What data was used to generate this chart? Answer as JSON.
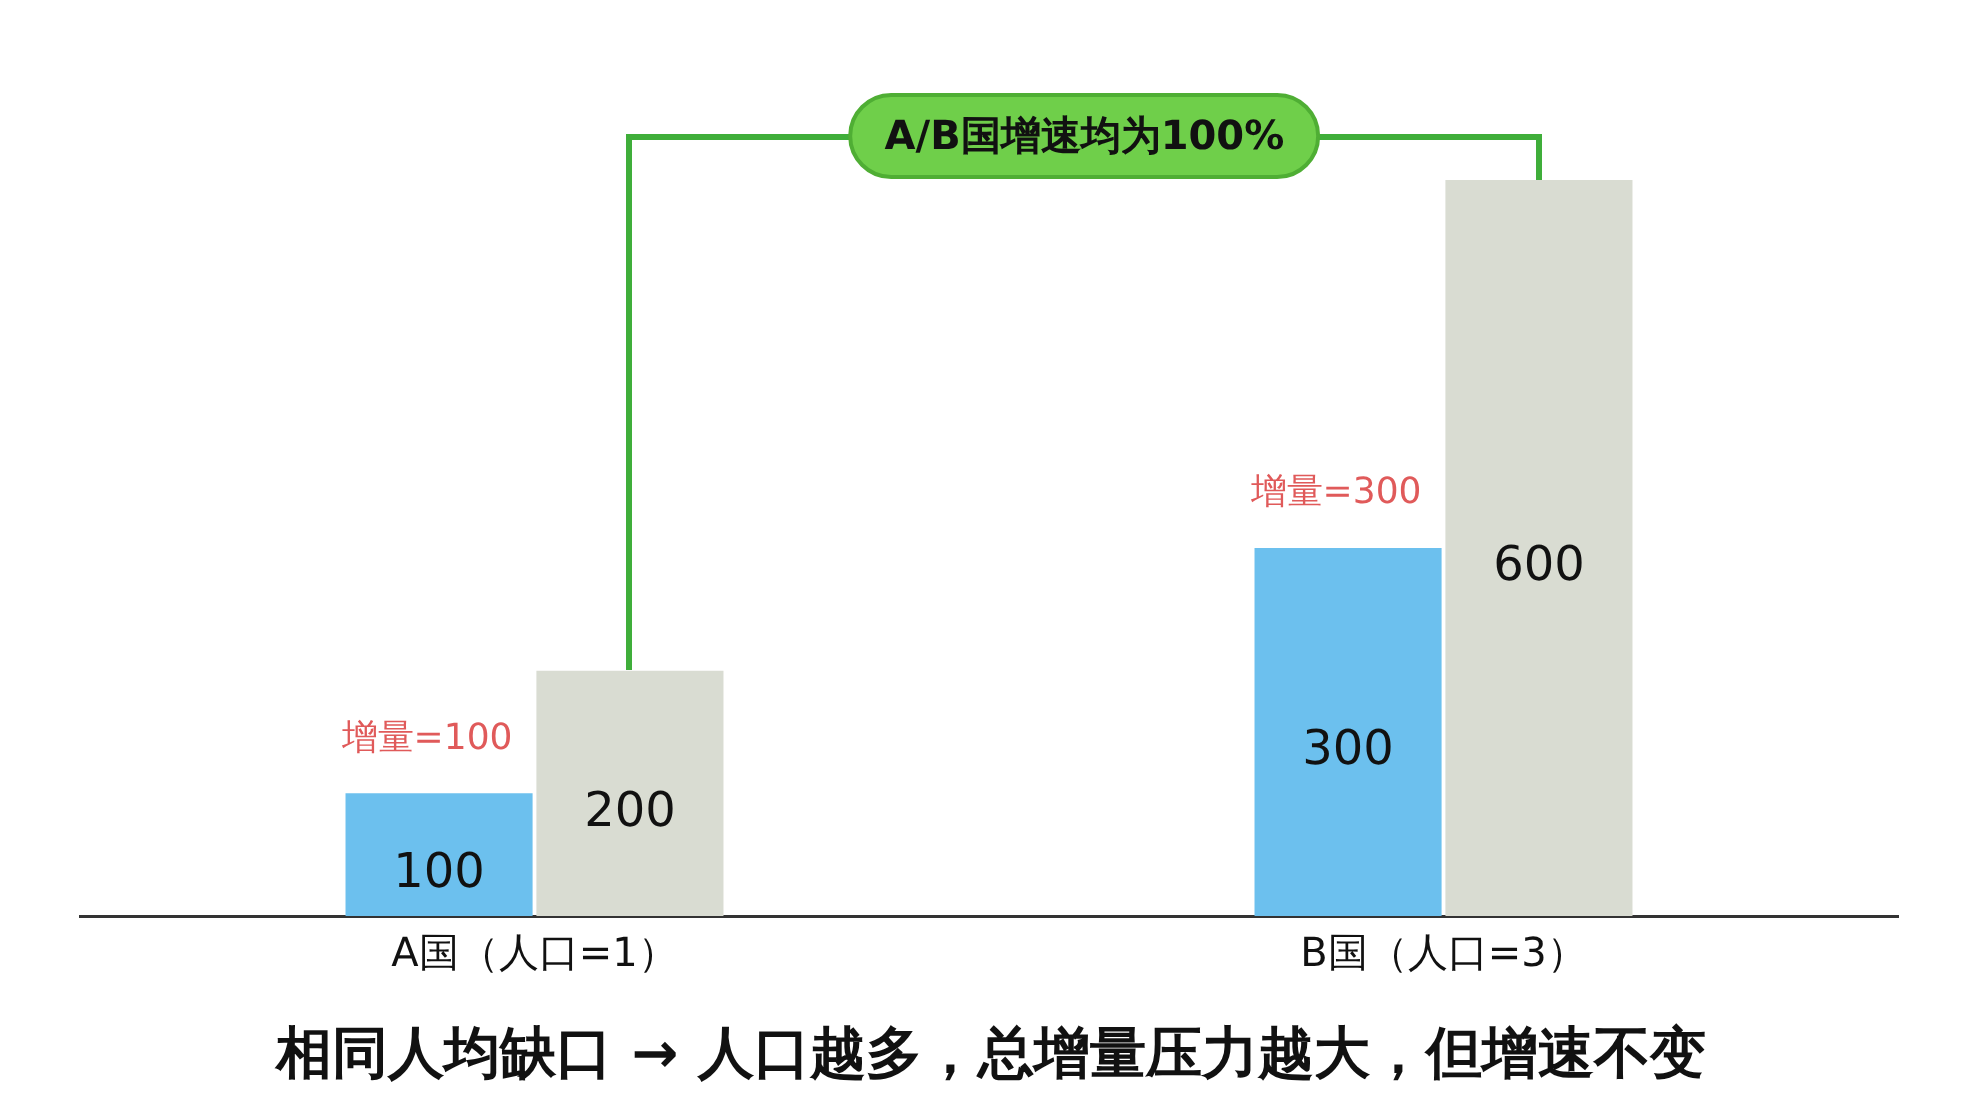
{
  "chart_data": {
    "type": "bar",
    "categories": [
      "A国（人口=1）",
      "B国（人口=3）"
    ],
    "series": [
      {
        "color": "#6cc0ee",
        "values": [
          100,
          300
        ]
      },
      {
        "color": "#d9dcd2",
        "values": [
          200,
          600
        ]
      }
    ],
    "tick_labels": "x",
    "grid": false,
    "legend": false,
    "data_labels": true,
    "annotations": [
      {
        "text": "增量=100",
        "x": "A国（人口=1）",
        "y": 100
      },
      {
        "text": "增量=300",
        "x": "B国（人口=3）",
        "y": 300
      },
      "A/B国增速均为100%",
      "相同人均缺口 → 人口越多，总增量压力越大，但增速不变"
    ]
  }
}
